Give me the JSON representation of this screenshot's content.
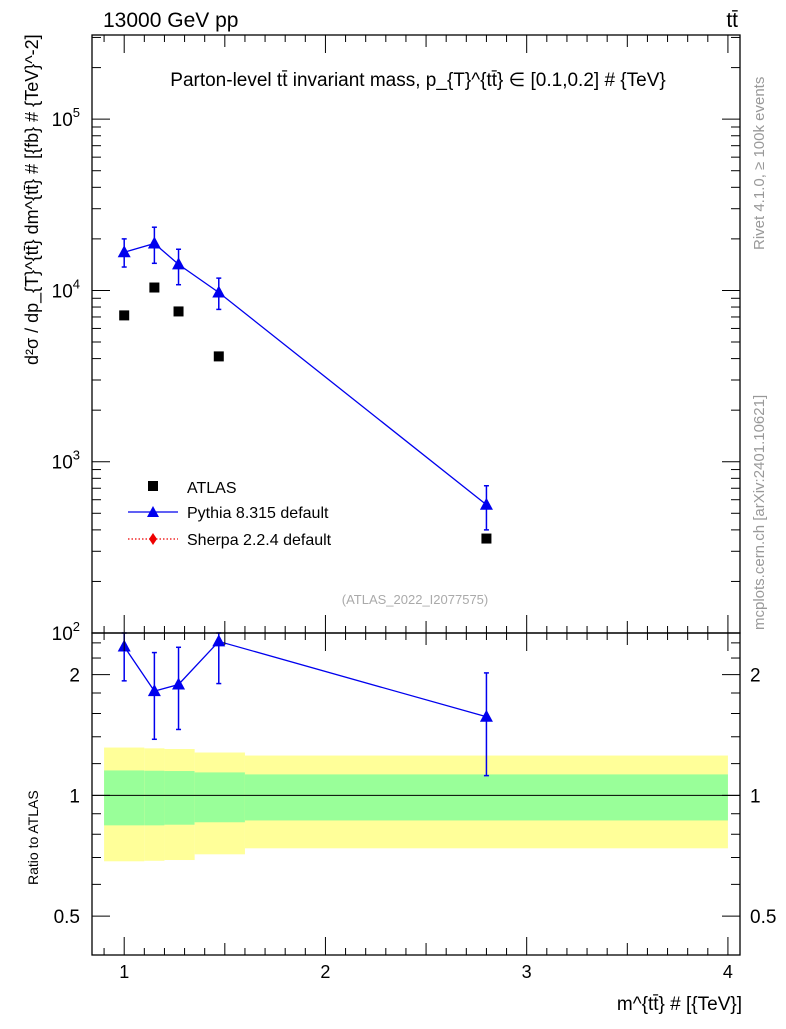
{
  "header": {
    "left": "13000 GeV pp",
    "right": "tt̄"
  },
  "side_labels": {
    "rivet": "Rivet 4.1.0, ≥ 100k events",
    "mcplots": "mcplots.cern.ch [arXiv:2401.10621]"
  },
  "watermark": "(ATLAS_2022_I2077575)",
  "colors": {
    "atlas": "#000000",
    "pythia": "#0000ee",
    "sherpa": "#ee0000",
    "band_yellow": "#ffff99",
    "band_green": "#99ff99"
  },
  "chart_data": [
    {
      "type": "scatter",
      "title": "Parton-level tt̄ invariant mass, p_{T}^{tt̄} ∈ [0.1,0.2] # {TeV}",
      "ylabel": "d²σ / dp_{T}^{tt̄} dm^{tt̄} # [{fb} # {TeV}^-2]",
      "yscale": "log",
      "xlim": [
        0.84,
        4.06
      ],
      "ylim": [
        100,
        310000
      ],
      "ytick_labels": [
        "10^2",
        "10^3",
        "10^4",
        "10^5"
      ],
      "legend_position": "bottom-left",
      "series": [
        {
          "name": "ATLAS",
          "marker": "square",
          "x": [
            1.0,
            1.15,
            1.27,
            1.47,
            2.8
          ],
          "y": [
            7150,
            10400,
            7540,
            4120,
            356
          ]
        },
        {
          "name": "Pythia 8.315 default",
          "marker": "triangle",
          "line": true,
          "x": [
            1.0,
            1.15,
            1.27,
            1.47,
            2.8
          ],
          "y": [
            16700,
            18800,
            14200,
            9730,
            561
          ],
          "yerr_low": [
            13700,
            14400,
            10800,
            7750,
            400
          ],
          "yerr_high": [
            20000,
            23400,
            17400,
            11800,
            724
          ]
        },
        {
          "name": "Sherpa 2.2.4 default",
          "marker": "diamond",
          "line": "dotted",
          "x": [],
          "y": []
        }
      ]
    },
    {
      "type": "scatter",
      "ylabel": "Ratio to ATLAS",
      "xlabel": "m^{tt̄} # [{TeV}]",
      "yscale": "log",
      "xlim": [
        0.84,
        4.06
      ],
      "ylim": [
        0.4,
        2.54
      ],
      "ytick_labels": [
        "0.5",
        "1",
        "2"
      ],
      "xtick_labels": [
        "1",
        "2",
        "3",
        "4"
      ],
      "bands": {
        "edges": [
          0.9,
          1.1,
          1.2,
          1.35,
          1.6,
          4.0
        ],
        "yellow_low": [
          0.685,
          0.687,
          0.69,
          0.713,
          0.738
        ],
        "yellow_high": [
          1.316,
          1.31,
          1.305,
          1.279,
          1.257
        ],
        "green_low": [
          0.842,
          0.842,
          0.845,
          0.857,
          0.866
        ],
        "green_high": [
          1.154,
          1.152,
          1.15,
          1.141,
          1.128
        ]
      },
      "series": [
        {
          "name": "Pythia 8.315 default",
          "x": [
            1.0,
            1.15,
            1.27,
            1.47,
            2.8
          ],
          "y": [
            2.35,
            1.82,
            1.89,
            2.42,
            1.57
          ],
          "yerr_low": [
            1.93,
            1.38,
            1.46,
            1.9,
            1.12
          ],
          "yerr_high": [
            2.9,
            2.27,
            2.34,
            3.0,
            2.02
          ]
        }
      ]
    }
  ]
}
